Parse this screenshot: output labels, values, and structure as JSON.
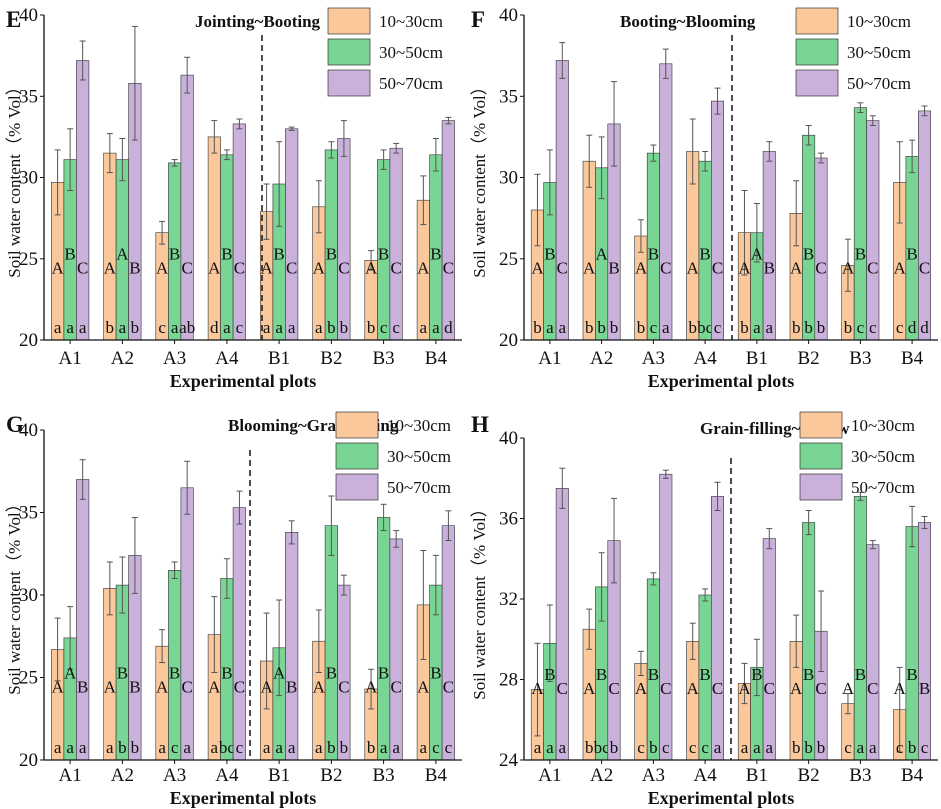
{
  "colors": {
    "s1": "#FAC89A",
    "s2": "#79D593",
    "s3": "#C9B1DC",
    "edge": "#333333",
    "err": "#555555",
    "sep": "#111111"
  },
  "chart_data": [
    {
      "type": "bar",
      "panel": "E",
      "title": "Jointing~Booting",
      "ylabel": "Soil water content（% Vol）",
      "xlabel": "Experimental plots",
      "ylim": [
        20,
        40
      ],
      "yticks": [
        "20",
        "25",
        "30",
        "35",
        "40"
      ],
      "legend_position": "top-right",
      "categories": [
        "A1",
        "A2",
        "A3",
        "A4",
        "B1",
        "B2",
        "B3",
        "B4"
      ],
      "series": [
        {
          "name": "10~30cm",
          "values": [
            29.7,
            31.5,
            26.6,
            32.5,
            27.9,
            28.2,
            24.9,
            28.6
          ],
          "errors": [
            2.0,
            1.2,
            0.7,
            1.0,
            1.7,
            1.6,
            0.6,
            1.5
          ]
        },
        {
          "name": "30~50cm",
          "values": [
            31.1,
            31.1,
            30.9,
            31.4,
            29.6,
            31.7,
            31.1,
            31.4
          ],
          "errors": [
            1.9,
            1.3,
            0.2,
            0.3,
            2.6,
            0.5,
            0.6,
            1.0
          ]
        },
        {
          "name": "50~70cm",
          "values": [
            37.2,
            35.8,
            36.3,
            33.3,
            33.0,
            32.4,
            31.8,
            33.5
          ],
          "errors": [
            1.2,
            3.5,
            1.1,
            0.3,
            0.1,
            1.1,
            0.3,
            0.2
          ]
        }
      ],
      "upper": [
        [
          "A",
          "A",
          "A",
          "A",
          "A",
          "A",
          "A",
          "A"
        ],
        [
          "B",
          "A",
          "B",
          "B",
          "B",
          "B",
          "B",
          "B"
        ],
        [
          "C",
          "B",
          "C",
          "C",
          "C",
          "C",
          "C",
          "C"
        ]
      ],
      "lower": [
        [
          "a",
          "b",
          "c",
          "d",
          "a",
          "a",
          "b",
          "a"
        ],
        [
          "a",
          "a",
          "a",
          "a",
          "a",
          "b",
          "c",
          "a"
        ],
        [
          "a",
          "b",
          "ab",
          "c",
          "a",
          "b",
          "c",
          "d"
        ]
      ]
    },
    {
      "type": "bar",
      "panel": "F",
      "title": "Booting~Blooming",
      "ylabel": "Soil water content（% Vol）",
      "xlabel": "Experimental plots",
      "ylim": [
        20,
        40
      ],
      "yticks": [
        "20",
        "25",
        "30",
        "35",
        "40"
      ],
      "legend_position": "top-right",
      "categories": [
        "A1",
        "A2",
        "A3",
        "A4",
        "B1",
        "B2",
        "B3",
        "B4"
      ],
      "series": [
        {
          "name": "10~30cm",
          "values": [
            28.0,
            31.0,
            26.4,
            31.6,
            26.6,
            27.8,
            24.6,
            29.7
          ],
          "errors": [
            2.2,
            1.6,
            1.0,
            2.0,
            2.6,
            2.0,
            1.6,
            2.5
          ]
        },
        {
          "name": "30~50cm",
          "values": [
            29.7,
            30.6,
            31.5,
            31.0,
            26.6,
            32.6,
            34.3,
            31.3
          ],
          "errors": [
            2.0,
            1.9,
            0.5,
            0.6,
            1.8,
            0.6,
            0.3,
            1.0
          ]
        },
        {
          "name": "50~70cm",
          "values": [
            37.2,
            33.3,
            37.0,
            34.7,
            31.6,
            31.2,
            33.5,
            34.1
          ],
          "errors": [
            1.1,
            2.6,
            0.9,
            0.8,
            0.6,
            0.3,
            0.3,
            0.3
          ]
        }
      ],
      "upper": [
        [
          "A",
          "A",
          "A",
          "A",
          "A",
          "A",
          "A",
          "A"
        ],
        [
          "B",
          "A",
          "B",
          "B",
          "A",
          "B",
          "B",
          "B"
        ],
        [
          "C",
          "B",
          "C",
          "C",
          "B",
          "C",
          "C",
          "C"
        ]
      ],
      "lower": [
        [
          "b",
          "b",
          "b",
          "b",
          "b",
          "b",
          "b",
          "c"
        ],
        [
          "a",
          "b",
          "c",
          "bc",
          "a",
          "b",
          "c",
          "d"
        ],
        [
          "a",
          "b",
          "a",
          "c",
          "a",
          "b",
          "c",
          "d"
        ]
      ]
    },
    {
      "type": "bar",
      "panel": "G",
      "title": "Blooming~Grain-filling",
      "ylabel": "Soil water content（% Vol）",
      "xlabel": "Experimental plots",
      "ylim": [
        20,
        40
      ],
      "yticks": [
        "20",
        "25",
        "30",
        "35",
        "40"
      ],
      "legend_position": "top-right",
      "categories": [
        "A1",
        "A2",
        "A3",
        "A4",
        "B1",
        "B2",
        "B3",
        "B4"
      ],
      "series": [
        {
          "name": "10~30cm",
          "values": [
            26.7,
            30.4,
            26.9,
            27.6,
            26.0,
            27.2,
            24.3,
            29.4
          ],
          "errors": [
            1.9,
            1.6,
            1.0,
            2.3,
            2.9,
            1.9,
            1.2,
            3.3
          ]
        },
        {
          "name": "30~50cm",
          "values": [
            27.4,
            30.6,
            31.5,
            31.0,
            26.8,
            34.2,
            34.7,
            30.6
          ],
          "errors": [
            1.9,
            1.7,
            0.5,
            1.2,
            2.9,
            1.8,
            0.8,
            1.8
          ]
        },
        {
          "name": "50~70cm",
          "values": [
            37.0,
            32.4,
            36.5,
            35.3,
            33.8,
            30.6,
            33.4,
            34.2
          ],
          "errors": [
            1.2,
            2.3,
            1.6,
            1.0,
            0.7,
            0.6,
            0.5,
            0.9
          ]
        }
      ],
      "upper": [
        [
          "A",
          "A",
          "A",
          "A",
          "A",
          "A",
          "A",
          "A"
        ],
        [
          "A",
          "B",
          "B",
          "B",
          "A",
          "B",
          "B",
          "B"
        ],
        [
          "B",
          "B",
          "C",
          "C",
          "B",
          "C",
          "C",
          "C"
        ]
      ],
      "lower": [
        [
          "a",
          "a",
          "a",
          "a",
          "a",
          "a",
          "b",
          "a"
        ],
        [
          "a",
          "b",
          "c",
          "bc",
          "a",
          "b",
          "a",
          "c"
        ],
        [
          "a",
          "b",
          "a",
          "c",
          "a",
          "b",
          "a",
          "c"
        ]
      ]
    },
    {
      "type": "bar",
      "panel": "H",
      "title": "Grain-filling~Fallow",
      "ylabel": "Soil water content（% Vol）",
      "xlabel": "Experimental plots",
      "ylim": [
        24,
        40
      ],
      "yticks": [
        "24",
        "28",
        "32",
        "36",
        "40"
      ],
      "legend_position": "top-right",
      "categories": [
        "A1",
        "A2",
        "A3",
        "A4",
        "B1",
        "B2",
        "B3",
        "B4"
      ],
      "series": [
        {
          "name": "10~30cm",
          "values": [
            27.5,
            30.5,
            28.8,
            29.9,
            27.8,
            29.9,
            26.8,
            26.5
          ],
          "errors": [
            2.3,
            1.0,
            0.6,
            0.9,
            1.0,
            1.3,
            0.5,
            2.1
          ]
        },
        {
          "name": "30~50cm",
          "values": [
            29.8,
            32.6,
            33.0,
            32.2,
            28.6,
            35.8,
            37.1,
            35.6
          ],
          "errors": [
            1.9,
            1.7,
            0.3,
            0.3,
            1.4,
            0.6,
            0.2,
            1.0
          ]
        },
        {
          "name": "50~70cm",
          "values": [
            37.5,
            34.9,
            38.2,
            37.1,
            35.0,
            30.4,
            34.7,
            35.8
          ],
          "errors": [
            1.0,
            2.1,
            0.2,
            0.7,
            0.5,
            2.0,
            0.2,
            0.3
          ]
        }
      ],
      "upper": [
        [
          "A",
          "A",
          "A",
          "A",
          "A",
          "A",
          "A",
          "A"
        ],
        [
          "B",
          "B",
          "B",
          "B",
          "B",
          "B",
          "B",
          "B"
        ],
        [
          "C",
          "C",
          "C",
          "C",
          "C",
          "C",
          "C",
          "B"
        ]
      ],
      "lower": [
        [
          "a",
          "b",
          "c",
          "c",
          "a",
          "b",
          "c",
          "c"
        ],
        [
          "a",
          "bc",
          "b",
          "c",
          "a",
          "b",
          "a",
          "b"
        ],
        [
          "a",
          "b",
          "c",
          "a",
          "a",
          "b",
          "a",
          "c"
        ]
      ]
    }
  ]
}
